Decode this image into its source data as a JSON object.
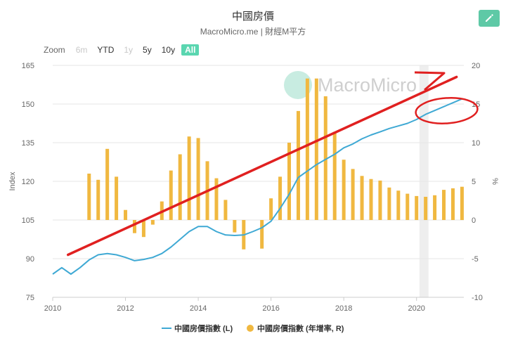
{
  "header": {
    "title": "中國房價",
    "subtitle": "MacroMicro.me | 財經M平方",
    "edit_icon": "pencil-icon"
  },
  "zoom": {
    "label": "Zoom",
    "buttons": [
      {
        "label": "6m",
        "state": "disabled"
      },
      {
        "label": "YTD",
        "state": "normal"
      },
      {
        "label": "1y",
        "state": "disabled"
      },
      {
        "label": "5y",
        "state": "normal"
      },
      {
        "label": "10y",
        "state": "normal"
      },
      {
        "label": "All",
        "state": "active"
      }
    ]
  },
  "watermark": "MacroMicro",
  "chart_data": {
    "type": "bar+line",
    "xlim": [
      2010,
      2021.5
    ],
    "x_ticks": [
      "2010",
      "2012",
      "2014",
      "2016",
      "2018",
      "2020"
    ],
    "y_left": {
      "label": "Index",
      "lim": [
        75,
        165
      ],
      "ticks": [
        "75",
        "90",
        "105",
        "120",
        "135",
        "150",
        "165"
      ]
    },
    "y_right": {
      "label": "%",
      "lim": [
        -10,
        20
      ],
      "ticks": [
        "-10",
        "-5",
        "0",
        "5",
        "10",
        "15",
        "20"
      ]
    },
    "series": [
      {
        "name": "中國房價指數 (L)",
        "type": "line",
        "axis": "left",
        "color": "#3fa9d4",
        "x": [
          2010.0,
          2010.25,
          2010.5,
          2010.75,
          2011.0,
          2011.25,
          2011.5,
          2011.75,
          2012.0,
          2012.25,
          2012.5,
          2012.75,
          2013.0,
          2013.25,
          2013.5,
          2013.75,
          2014.0,
          2014.25,
          2014.5,
          2014.75,
          2015.0,
          2015.25,
          2015.5,
          2015.75,
          2016.0,
          2016.25,
          2016.5,
          2016.75,
          2017.0,
          2017.25,
          2017.5,
          2017.75,
          2018.0,
          2018.25,
          2018.5,
          2018.75,
          2019.0,
          2019.25,
          2019.5,
          2019.75,
          2020.0,
          2020.25,
          2020.5,
          2020.75,
          2021.0,
          2021.25
        ],
        "values": [
          84,
          86.5,
          84,
          86.5,
          89.5,
          91.5,
          92,
          91.5,
          90.5,
          89.2,
          89.7,
          90.5,
          92,
          94.5,
          97.5,
          100.5,
          102.5,
          102.5,
          100.5,
          99.2,
          99,
          99.2,
          100.5,
          102,
          104.5,
          109.5,
          115,
          121.5,
          124,
          126.5,
          128.5,
          130.5,
          133,
          134.5,
          136.5,
          138,
          139.2,
          140.5,
          141.5,
          142.5,
          144,
          146,
          147.5,
          149,
          150.5,
          152
        ]
      },
      {
        "name": "中國房價指數 (年增率, R)",
        "type": "bar",
        "axis": "right",
        "color": "#f0b840",
        "x": [
          2011.0,
          2011.25,
          2011.5,
          2011.75,
          2012.0,
          2012.25,
          2012.5,
          2012.75,
          2013.0,
          2013.25,
          2013.5,
          2013.75,
          2014.0,
          2014.25,
          2014.5,
          2014.75,
          2015.0,
          2015.25,
          2015.75,
          2016.0,
          2016.25,
          2016.5,
          2016.75,
          2017.0,
          2017.25,
          2017.5,
          2017.75,
          2018.0,
          2018.25,
          2018.5,
          2018.75,
          2019.0,
          2019.25,
          2019.5,
          2019.75,
          2020.0,
          2020.25,
          2020.5,
          2020.75,
          2021.0,
          2021.25
        ],
        "values": [
          6,
          5.2,
          9.2,
          5.6,
          1.3,
          -1.7,
          -2.2,
          -0.6,
          2.4,
          6.4,
          8.5,
          10.8,
          10.6,
          7.6,
          5.4,
          2.6,
          -1.6,
          -3.8,
          -3.7,
          2.8,
          5.6,
          10,
          14.1,
          18.3,
          18.3,
          16,
          11.4,
          7.8,
          6.6,
          5.7,
          5.3,
          5.1,
          4.2,
          3.8,
          3.4,
          3.1,
          3,
          3.2,
          3.9,
          4.1,
          4.3
        ]
      }
    ],
    "shaded_band": {
      "x": [
        2020.08,
        2020.33
      ],
      "color": "#eeeeee"
    },
    "legend": {
      "position": "bottom"
    },
    "annotations": [
      {
        "type": "arrow",
        "color": "#e02020",
        "from": {
          "x": 2010.42,
          "y": 91.5
        },
        "to": {
          "x": 2021.1,
          "y": 160.5
        }
      },
      {
        "type": "ellipse",
        "color": "#e02020",
        "center": {
          "x": 2020.75,
          "y": 148.5
        }
      }
    ],
    "grid": true
  }
}
